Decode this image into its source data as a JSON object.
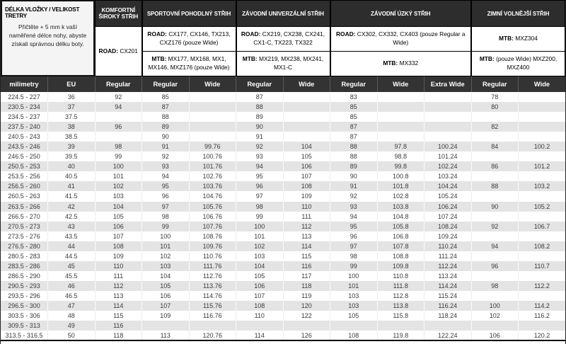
{
  "colors": {
    "category_header_bg": "#2d2d2d",
    "column_header_bg": "#333333",
    "row_alt_bg": "#e4e4e4",
    "info_block_bg": "#f4f4f4",
    "border": "#000000",
    "cell_text": "#3a3a3a"
  },
  "info_block": {
    "title": "DÉLKA VLOŽKY / VELIKOST TRETRY",
    "description": "Přičtěte + 5 mm k vaší naměřené délce nohy, abyste získali správnou délku boty."
  },
  "header": {
    "categories": [
      {
        "title": "KOMFORTNÍ ŠIROKÝ STŘIH",
        "width_units": 1,
        "cells": [
          {
            "prefix": "ROAD:",
            "text": "CX201"
          }
        ]
      },
      {
        "title": "SPORTOVNÍ POHODLNÝ STŘIH",
        "width_units": 2,
        "cells": [
          {
            "prefix": "ROAD:",
            "text": "CX177, CX146, TX213, CXZ176 (pouze Wide)"
          },
          {
            "prefix": "MTB:",
            "text": "MX177, MX168, MX1, MX146, MXZ176 (pouze Wide)"
          }
        ]
      },
      {
        "title": "ZÁVODNÍ UNIVERZÁLNÍ STŘIH",
        "width_units": 2,
        "cells": [
          {
            "prefix": "ROAD:",
            "text": "CX219, CX238, CX241, CX1-C, TX223, TX322"
          },
          {
            "prefix": "MTB:",
            "text": "MX219, MX238, MX241, MX1-C"
          }
        ]
      },
      {
        "title": "ZÁVODNÍ ÚZKÝ STŘIH",
        "width_units": 3,
        "cells": [
          {
            "prefix": "ROAD:",
            "text": "CX302, CX332, CX403 (pouze Regular a Wide)"
          },
          {
            "prefix": "MTB:",
            "text": "MX332"
          }
        ]
      },
      {
        "title": "ZIMNÍ VOLNĚJŠÍ STŘIH",
        "width_units": 2,
        "cells": [
          {
            "prefix": "MTB:",
            "text": "MXZ304"
          },
          {
            "prefix": "MTB:",
            "text": "(pouze Wide) MXZ200, MXZ400"
          }
        ]
      }
    ]
  },
  "table": {
    "column_headers": [
      "milimetry",
      "EU",
      "Regular",
      "Regular",
      "Wide",
      "Regular",
      "Wide",
      "Regular",
      "Wide",
      "Extra Wide",
      "Regular",
      "Wide"
    ],
    "rows": [
      [
        "224.5 - 227",
        "36",
        "92",
        "85",
        "",
        "87",
        "",
        "83",
        "",
        "",
        "78",
        ""
      ],
      [
        "230.5 - 234",
        "37",
        "94",
        "87",
        "",
        "88",
        "",
        "85",
        "",
        "",
        "80",
        ""
      ],
      [
        "234.5 - 237",
        "37.5",
        "",
        "88",
        "",
        "89",
        "",
        "85",
        "",
        "",
        "",
        ""
      ],
      [
        "237.5 - 240",
        "38",
        "96",
        "89",
        "",
        "90",
        "",
        "87",
        "",
        "",
        "82",
        ""
      ],
      [
        "240.5 - 243",
        "38.5",
        "",
        "90",
        "",
        "91",
        "",
        "87",
        "",
        "",
        "",
        ""
      ],
      [
        "243.5 - 246",
        "39",
        "98",
        "91",
        "99.76",
        "92",
        "104",
        "88",
        "97.8",
        "100.24",
        "84",
        "100.2"
      ],
      [
        "246.5 - 250",
        "39.5",
        "99",
        "92",
        "100.76",
        "93",
        "105",
        "88",
        "98.8",
        "101.24",
        "",
        ""
      ],
      [
        "250.5 - 253",
        "40",
        "100",
        "93",
        "101.76",
        "94",
        "106",
        "89",
        "99.8",
        "102.24",
        "86",
        "101.2"
      ],
      [
        "253.5 - 256",
        "40.5",
        "101",
        "94",
        "102.76",
        "95",
        "107",
        "90",
        "100.8",
        "103.24",
        "",
        ""
      ],
      [
        "256.5 - 260",
        "41",
        "102",
        "95",
        "103.76",
        "96",
        "108",
        "91",
        "101.8",
        "104.24",
        "88",
        "103.2"
      ],
      [
        "260.5 - 263",
        "41.5",
        "103",
        "96",
        "104.76",
        "97",
        "109",
        "92",
        "102.8",
        "105.24",
        "",
        ""
      ],
      [
        "263.5 - 266",
        "42",
        "104",
        "97",
        "105.76",
        "98",
        "110",
        "93",
        "103.8",
        "106.24",
        "90",
        "105.2"
      ],
      [
        "266.5 - 270",
        "42.5",
        "105",
        "98",
        "106.76",
        "99",
        "111",
        "94",
        "104.8",
        "107.24",
        "",
        ""
      ],
      [
        "270.5 - 273",
        "43",
        "106",
        "99",
        "107.76",
        "100",
        "112",
        "95",
        "105.8",
        "108.24",
        "92",
        "106.7"
      ],
      [
        "273.5 - 276",
        "43.5",
        "107",
        "100",
        "108.76",
        "101",
        "113",
        "96",
        "106.8",
        "109.24",
        "",
        ""
      ],
      [
        "276.5 - 280",
        "44",
        "108",
        "101",
        "109.76",
        "102",
        "114",
        "97",
        "107.8",
        "110.24",
        "94",
        "108.2"
      ],
      [
        "280.5 - 283",
        "44.5",
        "109",
        "102",
        "110.76",
        "103",
        "115",
        "98",
        "108.8",
        "111.24",
        "",
        ""
      ],
      [
        "283.5 - 286",
        "45",
        "110",
        "103",
        "111.76",
        "104",
        "116",
        "99",
        "109.8",
        "112.24",
        "96",
        "110.7"
      ],
      [
        "286.5 - 290",
        "45.5",
        "111",
        "104",
        "112.76",
        "105",
        "117",
        "100",
        "110.8",
        "113.24",
        "",
        ""
      ],
      [
        "290.5 - 293",
        "46",
        "112",
        "105",
        "113.76",
        "106",
        "118",
        "101",
        "111.8",
        "114.24",
        "98",
        "112.2"
      ],
      [
        "293.5 - 296",
        "46.5",
        "113",
        "106",
        "114.76",
        "107",
        "119",
        "103",
        "112.8",
        "115.24",
        "",
        ""
      ],
      [
        "296.5 - 300",
        "47",
        "114",
        "107",
        "115.76",
        "108",
        "120",
        "103",
        "113.8",
        "116.24",
        "100",
        "114.2"
      ],
      [
        "303.5 - 306",
        "48",
        "115",
        "109",
        "116.76",
        "110",
        "122",
        "105",
        "115.8",
        "118.24",
        "102",
        "116.2"
      ],
      [
        "309.5 - 313",
        "49",
        "116",
        "",
        "",
        "",
        "",
        "",
        "",
        "",
        "",
        ""
      ],
      [
        "313.5 - 316.5",
        "50",
        "118",
        "113",
        "120.76",
        "114",
        "126",
        "108",
        "119.8",
        "122.24",
        "106",
        "120.2"
      ]
    ]
  }
}
